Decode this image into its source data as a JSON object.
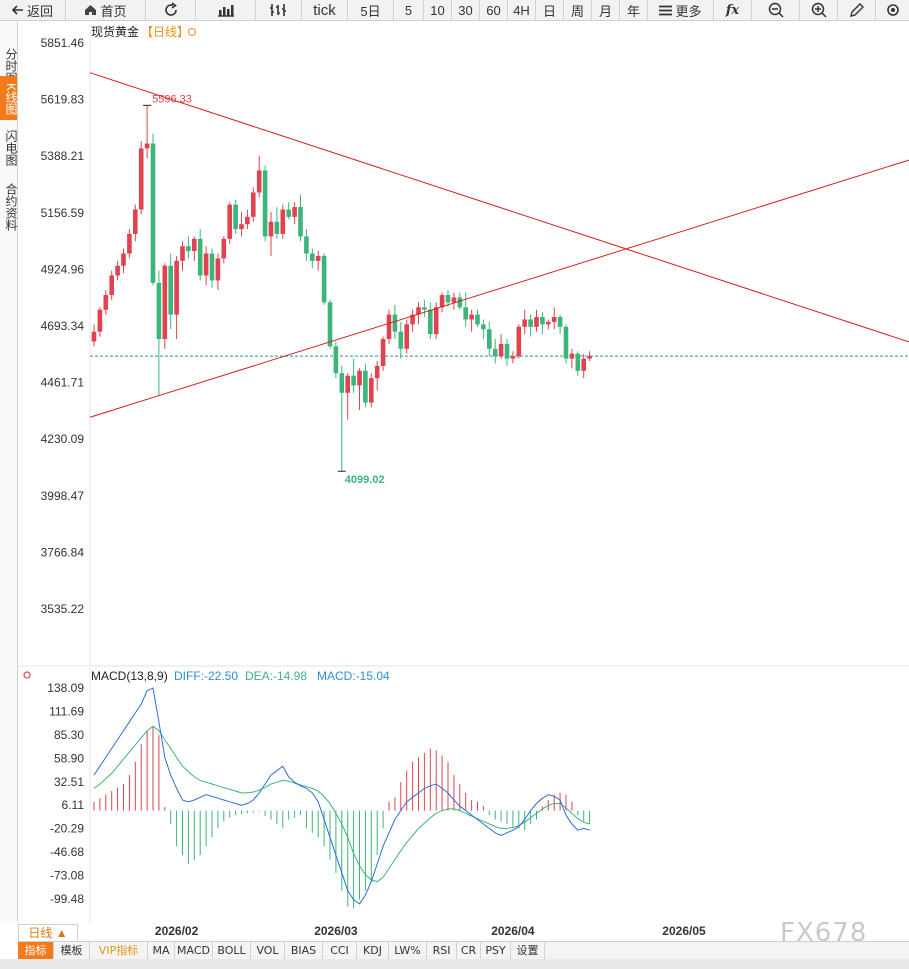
{
  "toolbar": {
    "back": "返回",
    "home": "首页",
    "tick": "tick",
    "d5": "5日",
    "p5": "5",
    "p10": "10",
    "p30": "30",
    "p60": "60",
    "p4h": "4H",
    "day": "日",
    "week": "周",
    "month": "月",
    "year": "年",
    "more": "更多",
    "fx": "fx"
  },
  "sidebar": {
    "items": [
      {
        "label": "分时图"
      },
      {
        "label": "K线图"
      },
      {
        "label": "闪电图"
      },
      {
        "label": "合约资料"
      }
    ]
  },
  "price_panel": {
    "instrument": "现货黄金",
    "period_tag": "【日线】",
    "yaxis_labels": [
      "5851.46",
      "5619.83",
      "5388.21",
      "5156.59",
      "4924.96",
      "4693.34",
      "4461.71",
      "4230.09",
      "3998.47",
      "3766.84",
      "3535.22"
    ],
    "high_label": "5596.33",
    "low_label": "4099.02"
  },
  "macd_panel": {
    "title": "MACD(13,8,9)",
    "diff": "DIFF:-22.50",
    "dea": "DEA:-14.98",
    "macd": "MACD:-15.04",
    "yaxis_labels": [
      "138.09",
      "111.69",
      "85.30",
      "58.90",
      "32.51",
      "6.11",
      "-20.29",
      "-46.68",
      "-73.08",
      "-99.48"
    ]
  },
  "x_labels": [
    "2026/02",
    "2026/03",
    "2026/04",
    "2026/05"
  ],
  "period_tab": "日线 ▲",
  "bottom_tabs": [
    "指标",
    "模板",
    "VIP指标",
    "MA",
    "MACD",
    "BOLL",
    "VOL",
    "BIAS",
    "CCI",
    "KDJ",
    "LW%",
    "RSI",
    "CR",
    "PSY",
    "设置"
  ],
  "watermark": "FX678",
  "colors": {
    "up": "#e0424f",
    "down": "#3cb57a",
    "trendline": "#d42020",
    "current_price_line": "#2a9d8f",
    "diff_line": "#2b6fd6",
    "dea_line": "#3cb57a",
    "accent": "#f27a1a",
    "diff_text": "#2b8fd6",
    "dea_text": "#3cb57a",
    "macd_text": "#2b8fd6"
  },
  "chart_data": {
    "type": "candlestick",
    "instrument": "现货黄金",
    "period": "日线",
    "ylim": [
      3535.22,
      5851.46
    ],
    "x_ticks": [
      "2026/02",
      "2026/03",
      "2026/04",
      "2026/05"
    ],
    "annotations": [
      {
        "text": "5596.33",
        "kind": "high"
      },
      {
        "text": "4099.02",
        "kind": "low"
      }
    ],
    "current_price": 4570,
    "candles": [
      {
        "o": 4630,
        "h": 4700,
        "l": 4610,
        "c": 4670
      },
      {
        "o": 4670,
        "h": 4770,
        "l": 4650,
        "c": 4760
      },
      {
        "o": 4760,
        "h": 4840,
        "l": 4740,
        "c": 4820
      },
      {
        "o": 4820,
        "h": 4920,
        "l": 4800,
        "c": 4900
      },
      {
        "o": 4900,
        "h": 4960,
        "l": 4880,
        "c": 4940
      },
      {
        "o": 4940,
        "h": 5010,
        "l": 4910,
        "c": 4990
      },
      {
        "o": 4990,
        "h": 5090,
        "l": 4970,
        "c": 5070
      },
      {
        "o": 5070,
        "h": 5190,
        "l": 5040,
        "c": 5170
      },
      {
        "o": 5170,
        "h": 5450,
        "l": 5150,
        "c": 5420
      },
      {
        "o": 5420,
        "h": 5596.33,
        "l": 5380,
        "c": 5440
      },
      {
        "o": 5440,
        "h": 5480,
        "l": 4860,
        "c": 4870
      },
      {
        "o": 4870,
        "h": 4920,
        "l": 4410,
        "c": 4640
      },
      {
        "o": 4640,
        "h": 4950,
        "l": 4600,
        "c": 4940
      },
      {
        "o": 4940,
        "h": 4990,
        "l": 4680,
        "c": 4740
      },
      {
        "o": 4740,
        "h": 4980,
        "l": 4640,
        "c": 4960
      },
      {
        "o": 4960,
        "h": 5040,
        "l": 4920,
        "c": 5020
      },
      {
        "o": 5020,
        "h": 5060,
        "l": 4970,
        "c": 5000
      },
      {
        "o": 5000,
        "h": 5060,
        "l": 4960,
        "c": 5050
      },
      {
        "o": 5050,
        "h": 5090,
        "l": 4880,
        "c": 4900
      },
      {
        "o": 4900,
        "h": 5020,
        "l": 4860,
        "c": 4990
      },
      {
        "o": 4990,
        "h": 5010,
        "l": 4850,
        "c": 4880
      },
      {
        "o": 4880,
        "h": 4990,
        "l": 4840,
        "c": 4970
      },
      {
        "o": 4970,
        "h": 5060,
        "l": 4950,
        "c": 5050
      },
      {
        "o": 5050,
        "h": 5200,
        "l": 5030,
        "c": 5190
      },
      {
        "o": 5190,
        "h": 5210,
        "l": 5070,
        "c": 5090
      },
      {
        "o": 5090,
        "h": 5160,
        "l": 5060,
        "c": 5110
      },
      {
        "o": 5110,
        "h": 5170,
        "l": 5090,
        "c": 5140
      },
      {
        "o": 5140,
        "h": 5260,
        "l": 5120,
        "c": 5240
      },
      {
        "o": 5240,
        "h": 5390,
        "l": 5220,
        "c": 5330
      },
      {
        "o": 5330,
        "h": 5350,
        "l": 5040,
        "c": 5060
      },
      {
        "o": 5060,
        "h": 5160,
        "l": 4980,
        "c": 5120
      },
      {
        "o": 5120,
        "h": 5180,
        "l": 5050,
        "c": 5070
      },
      {
        "o": 5070,
        "h": 5190,
        "l": 5050,
        "c": 5170
      },
      {
        "o": 5170,
        "h": 5200,
        "l": 5130,
        "c": 5140
      },
      {
        "o": 5140,
        "h": 5200,
        "l": 5110,
        "c": 5180
      },
      {
        "o": 5180,
        "h": 5230,
        "l": 5040,
        "c": 5060
      },
      {
        "o": 5060,
        "h": 5090,
        "l": 4960,
        "c": 4990
      },
      {
        "o": 4990,
        "h": 5010,
        "l": 4930,
        "c": 4960
      },
      {
        "o": 4960,
        "h": 5000,
        "l": 4920,
        "c": 4980
      },
      {
        "o": 4980,
        "h": 4990,
        "l": 4780,
        "c": 4790
      },
      {
        "o": 4790,
        "h": 4800,
        "l": 4600,
        "c": 4610
      },
      {
        "o": 4610,
        "h": 4630,
        "l": 4480,
        "c": 4500
      },
      {
        "o": 4500,
        "h": 4530,
        "l": 4099.02,
        "c": 4420
      },
      {
        "o": 4420,
        "h": 4500,
        "l": 4310,
        "c": 4490
      },
      {
        "o": 4490,
        "h": 4560,
        "l": 4420,
        "c": 4450
      },
      {
        "o": 4450,
        "h": 4520,
        "l": 4350,
        "c": 4510
      },
      {
        "o": 4510,
        "h": 4540,
        "l": 4360,
        "c": 4380
      },
      {
        "o": 4380,
        "h": 4500,
        "l": 4360,
        "c": 4480
      },
      {
        "o": 4480,
        "h": 4550,
        "l": 4430,
        "c": 4530
      },
      {
        "o": 4530,
        "h": 4650,
        "l": 4510,
        "c": 4640
      },
      {
        "o": 4640,
        "h": 4760,
        "l": 4620,
        "c": 4740
      },
      {
        "o": 4740,
        "h": 4780,
        "l": 4640,
        "c": 4670
      },
      {
        "o": 4670,
        "h": 4710,
        "l": 4560,
        "c": 4600
      },
      {
        "o": 4600,
        "h": 4720,
        "l": 4580,
        "c": 4700
      },
      {
        "o": 4700,
        "h": 4760,
        "l": 4670,
        "c": 4740
      },
      {
        "o": 4740,
        "h": 4790,
        "l": 4700,
        "c": 4770
      },
      {
        "o": 4770,
        "h": 4800,
        "l": 4730,
        "c": 4760
      },
      {
        "o": 4760,
        "h": 4790,
        "l": 4640,
        "c": 4660
      },
      {
        "o": 4660,
        "h": 4790,
        "l": 4640,
        "c": 4770
      },
      {
        "o": 4770,
        "h": 4830,
        "l": 4750,
        "c": 4820
      },
      {
        "o": 4820,
        "h": 4840,
        "l": 4770,
        "c": 4790
      },
      {
        "o": 4790,
        "h": 4830,
        "l": 4760,
        "c": 4810
      },
      {
        "o": 4810,
        "h": 4830,
        "l": 4760,
        "c": 4770
      },
      {
        "o": 4770,
        "h": 4830,
        "l": 4690,
        "c": 4720
      },
      {
        "o": 4720,
        "h": 4760,
        "l": 4670,
        "c": 4740
      },
      {
        "o": 4740,
        "h": 4760,
        "l": 4690,
        "c": 4700
      },
      {
        "o": 4700,
        "h": 4720,
        "l": 4640,
        "c": 4680
      },
      {
        "o": 4680,
        "h": 4710,
        "l": 4570,
        "c": 4600
      },
      {
        "o": 4600,
        "h": 4640,
        "l": 4540,
        "c": 4570
      },
      {
        "o": 4570,
        "h": 4660,
        "l": 4560,
        "c": 4620
      },
      {
        "o": 4620,
        "h": 4640,
        "l": 4530,
        "c": 4560
      },
      {
        "o": 4560,
        "h": 4590,
        "l": 4540,
        "c": 4570
      },
      {
        "o": 4570,
        "h": 4700,
        "l": 4560,
        "c": 4690
      },
      {
        "o": 4690,
        "h": 4760,
        "l": 4660,
        "c": 4720
      },
      {
        "o": 4720,
        "h": 4740,
        "l": 4650,
        "c": 4690
      },
      {
        "o": 4690,
        "h": 4760,
        "l": 4670,
        "c": 4730
      },
      {
        "o": 4730,
        "h": 4750,
        "l": 4660,
        "c": 4700
      },
      {
        "o": 4700,
        "h": 4720,
        "l": 4680,
        "c": 4710
      },
      {
        "o": 4710,
        "h": 4770,
        "l": 4680,
        "c": 4730
      },
      {
        "o": 4730,
        "h": 4740,
        "l": 4660,
        "c": 4690
      },
      {
        "o": 4690,
        "h": 4700,
        "l": 4540,
        "c": 4560
      },
      {
        "o": 4560,
        "h": 4600,
        "l": 4520,
        "c": 4580
      },
      {
        "o": 4580,
        "h": 4590,
        "l": 4490,
        "c": 4510
      },
      {
        "o": 4510,
        "h": 4580,
        "l": 4480,
        "c": 4560
      },
      {
        "o": 4560,
        "h": 4590,
        "l": 4550,
        "c": 4570
      }
    ],
    "trendlines": [
      {
        "from": [
          0,
          5730
        ],
        "to": [
          84,
          5060
        ],
        "extend_to": 160
      },
      {
        "from": [
          0,
          4320
        ],
        "to": [
          84,
          4960
        ],
        "extend_to": 160
      }
    ],
    "macd": {
      "ylim": [
        -120,
        150
      ],
      "hist": [
        10,
        14,
        18,
        22,
        26,
        30,
        40,
        55,
        75,
        90,
        95,
        85,
        4,
        -15,
        -40,
        -50,
        -60,
        -56,
        -50,
        -40,
        -30,
        -20,
        -12,
        -8,
        -5,
        -4,
        -3,
        -2,
        -1,
        -6,
        -10,
        -15,
        -20,
        -10,
        -8,
        -5,
        -20,
        -25,
        -30,
        -40,
        -55,
        -70,
        -90,
        -108,
        -110,
        -100,
        -90,
        -80,
        -50,
        -20,
        10,
        15,
        32,
        45,
        55,
        60,
        65,
        70,
        68,
        62,
        55,
        40,
        30,
        20,
        12,
        10,
        5,
        -5,
        -10,
        -12,
        -15,
        -18,
        -20,
        -22,
        -15,
        -10,
        5,
        12,
        18,
        20,
        18,
        10,
        -5,
        -12,
        -15
      ],
      "diff": [
        40,
        50,
        60,
        70,
        80,
        90,
        100,
        110,
        120,
        135,
        138,
        100,
        60,
        40,
        25,
        12,
        10,
        12,
        15,
        18,
        16,
        14,
        12,
        10,
        8,
        6,
        8,
        12,
        20,
        30,
        40,
        45,
        50,
        38,
        32,
        28,
        25,
        20,
        10,
        -10,
        -30,
        -50,
        -70,
        -90,
        -100,
        -105,
        -95,
        -80,
        -60,
        -40,
        -25,
        -10,
        0,
        10,
        15,
        20,
        25,
        28,
        30,
        25,
        20,
        12,
        5,
        0,
        -5,
        -10,
        -15,
        -20,
        -25,
        -28,
        -25,
        -22,
        -18,
        -10,
        0,
        8,
        14,
        18,
        16,
        12,
        -5,
        -15,
        -22,
        -20,
        -22
      ],
      "dea": [
        25,
        30,
        36,
        42,
        50,
        58,
        66,
        74,
        82,
        90,
        95,
        90,
        80,
        70,
        60,
        50,
        44,
        38,
        34,
        32,
        30,
        28,
        26,
        24,
        22,
        20,
        20,
        21,
        23,
        26,
        30,
        32,
        34,
        33,
        31,
        29,
        27,
        25,
        22,
        16,
        8,
        -3,
        -15,
        -30,
        -48,
        -62,
        -72,
        -78,
        -80,
        -75,
        -65,
        -55,
        -45,
        -36,
        -28,
        -20,
        -14,
        -8,
        -3,
        0,
        2,
        2,
        0,
        -3,
        -6,
        -9,
        -12,
        -15,
        -18,
        -20,
        -20,
        -19,
        -17,
        -13,
        -8,
        -3,
        2,
        6,
        8,
        8,
        3,
        -3,
        -9,
        -13,
        -14.98
      ]
    }
  }
}
